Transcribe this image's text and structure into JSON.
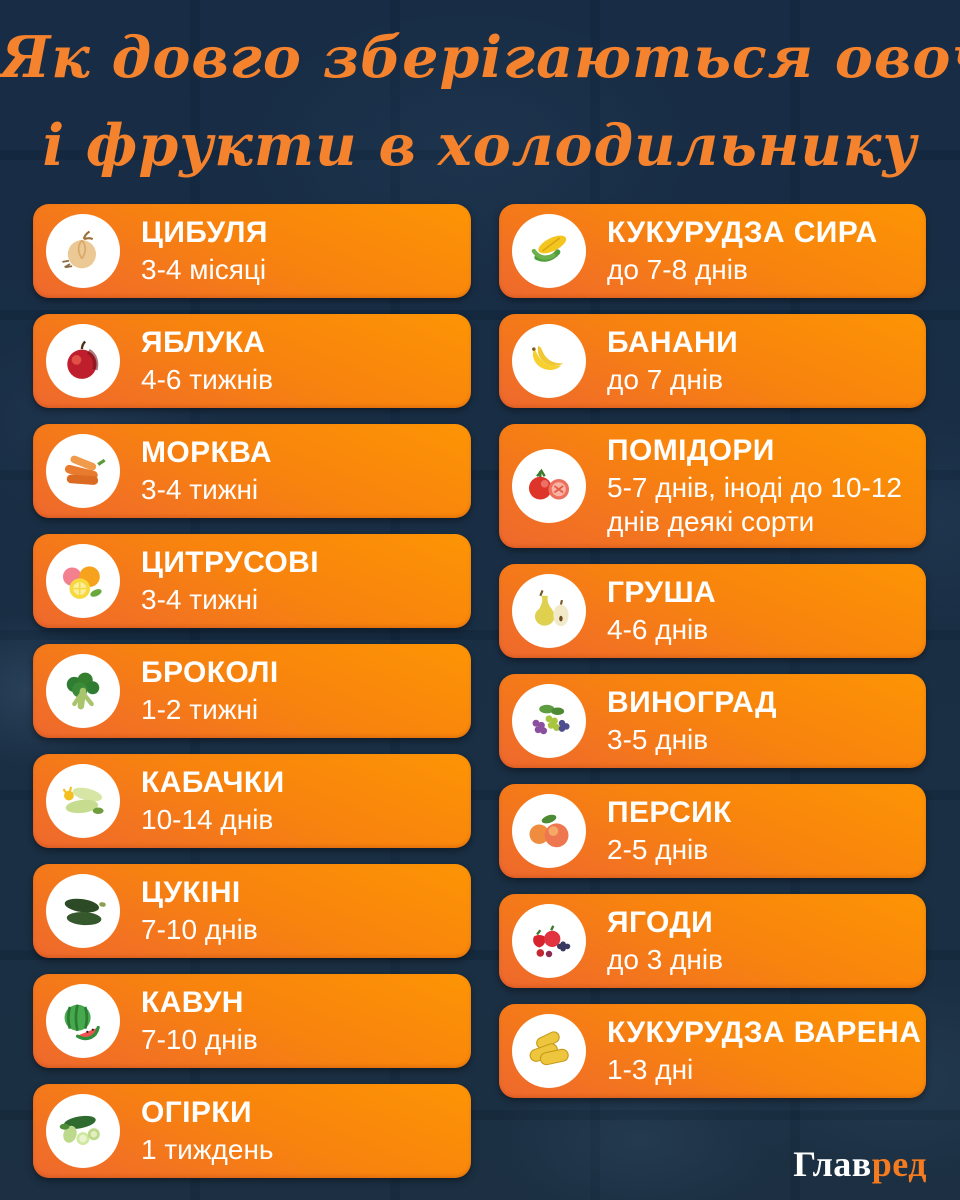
{
  "title": {
    "line1": "Як довго зберігаються овочі",
    "line2": "і фрукти в холодильнику"
  },
  "colors": {
    "background_navy": "#13293f",
    "card_gradient_top": "#fd9404",
    "card_gradient_bottom": "#ee682e",
    "title_orange": "#f5822d",
    "logo_orange": "#f47b20",
    "text_white": "#ffffff"
  },
  "columns": {
    "left": [
      {
        "name": "ЦИБУЛЯ",
        "duration": "3-4 місяці",
        "icon": "onion-icon"
      },
      {
        "name": "ЯБЛУКА",
        "duration": "4-6 тижнів",
        "icon": "apple-icon"
      },
      {
        "name": "МОРКВА",
        "duration": "3-4 тижні",
        "icon": "carrot-icon"
      },
      {
        "name": "ЦИТРУСОВІ",
        "duration": "3-4 тижні",
        "icon": "citrus-icon"
      },
      {
        "name": "БРОКОЛІ",
        "duration": "1-2 тижні",
        "icon": "broccoli-icon"
      },
      {
        "name": "КАБАЧКИ",
        "duration": "10-14 днів",
        "icon": "squash-icon"
      },
      {
        "name": "ЦУКІНІ",
        "duration": "7-10 днів",
        "icon": "zucchini-icon"
      },
      {
        "name": "КАВУН",
        "duration": "7-10 днів",
        "icon": "watermelon-icon"
      },
      {
        "name": "ОГІРКИ",
        "duration": "1 тиждень",
        "icon": "cucumber-icon"
      }
    ],
    "right": [
      {
        "name": "КУКУРУДЗА СИРА",
        "duration": "до 7-8 днів",
        "icon": "corn-raw-icon"
      },
      {
        "name": "БАНАНИ",
        "duration": "до 7 днів",
        "icon": "banana-icon"
      },
      {
        "name": "ПОМІДОРИ",
        "duration": "5-7 днів, іноді до 10-12 днів деякі сорти",
        "icon": "tomato-icon"
      },
      {
        "name": "ГРУША",
        "duration": "4-6 днів",
        "icon": "pear-icon"
      },
      {
        "name": "ВИНОГРАД",
        "duration": "3-5 днів",
        "icon": "grape-icon"
      },
      {
        "name": "ПЕРСИК",
        "duration": "2-5 днів",
        "icon": "peach-icon"
      },
      {
        "name": "ЯГОДИ",
        "duration": "до 3 днів",
        "icon": "berries-icon"
      },
      {
        "name": "КУКУРУДЗА ВАРЕНА",
        "duration": "1-3 дні",
        "icon": "corn-boiled-icon"
      }
    ]
  },
  "logo": {
    "part1": "Глав",
    "part2": "ред"
  }
}
